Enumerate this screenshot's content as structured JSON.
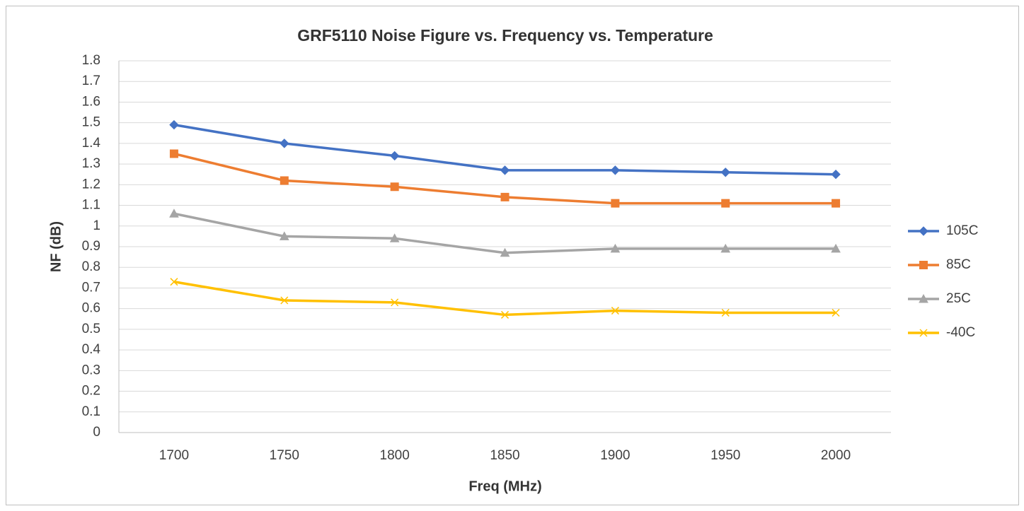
{
  "chart_data": {
    "type": "line",
    "title": "GRF5110 Noise Figure vs. Frequency vs. Temperature",
    "x_label": "Freq (MHz)",
    "y_label": "NF (dB)",
    "categories": [
      1700,
      1750,
      1800,
      1850,
      1900,
      1950,
      2000
    ],
    "series": [
      {
        "name": "105C",
        "color": "#4472c4",
        "marker": "diamond",
        "values": [
          1.49,
          1.4,
          1.34,
          1.27,
          1.27,
          1.26,
          1.25
        ]
      },
      {
        "name": "85C",
        "color": "#ed7d31",
        "marker": "square",
        "values": [
          1.35,
          1.22,
          1.19,
          1.14,
          1.11,
          1.11,
          1.11
        ]
      },
      {
        "name": "25C",
        "color": "#a5a5a5",
        "marker": "triangle",
        "values": [
          1.06,
          0.95,
          0.94,
          0.87,
          0.89,
          0.89,
          0.89
        ]
      },
      {
        "name": "-40C",
        "color": "#ffc000",
        "marker": "x",
        "values": [
          0.73,
          0.64,
          0.63,
          0.57,
          0.59,
          0.58,
          0.58
        ]
      }
    ],
    "ylim": [
      0,
      1.8
    ],
    "yticks": [
      0,
      0.1,
      0.2,
      0.3,
      0.4,
      0.5,
      0.6,
      0.7,
      0.8,
      0.9,
      1,
      1.1,
      1.2,
      1.3,
      1.4,
      1.5,
      1.6,
      1.7,
      1.8
    ],
    "grid": true,
    "legend": "right"
  }
}
